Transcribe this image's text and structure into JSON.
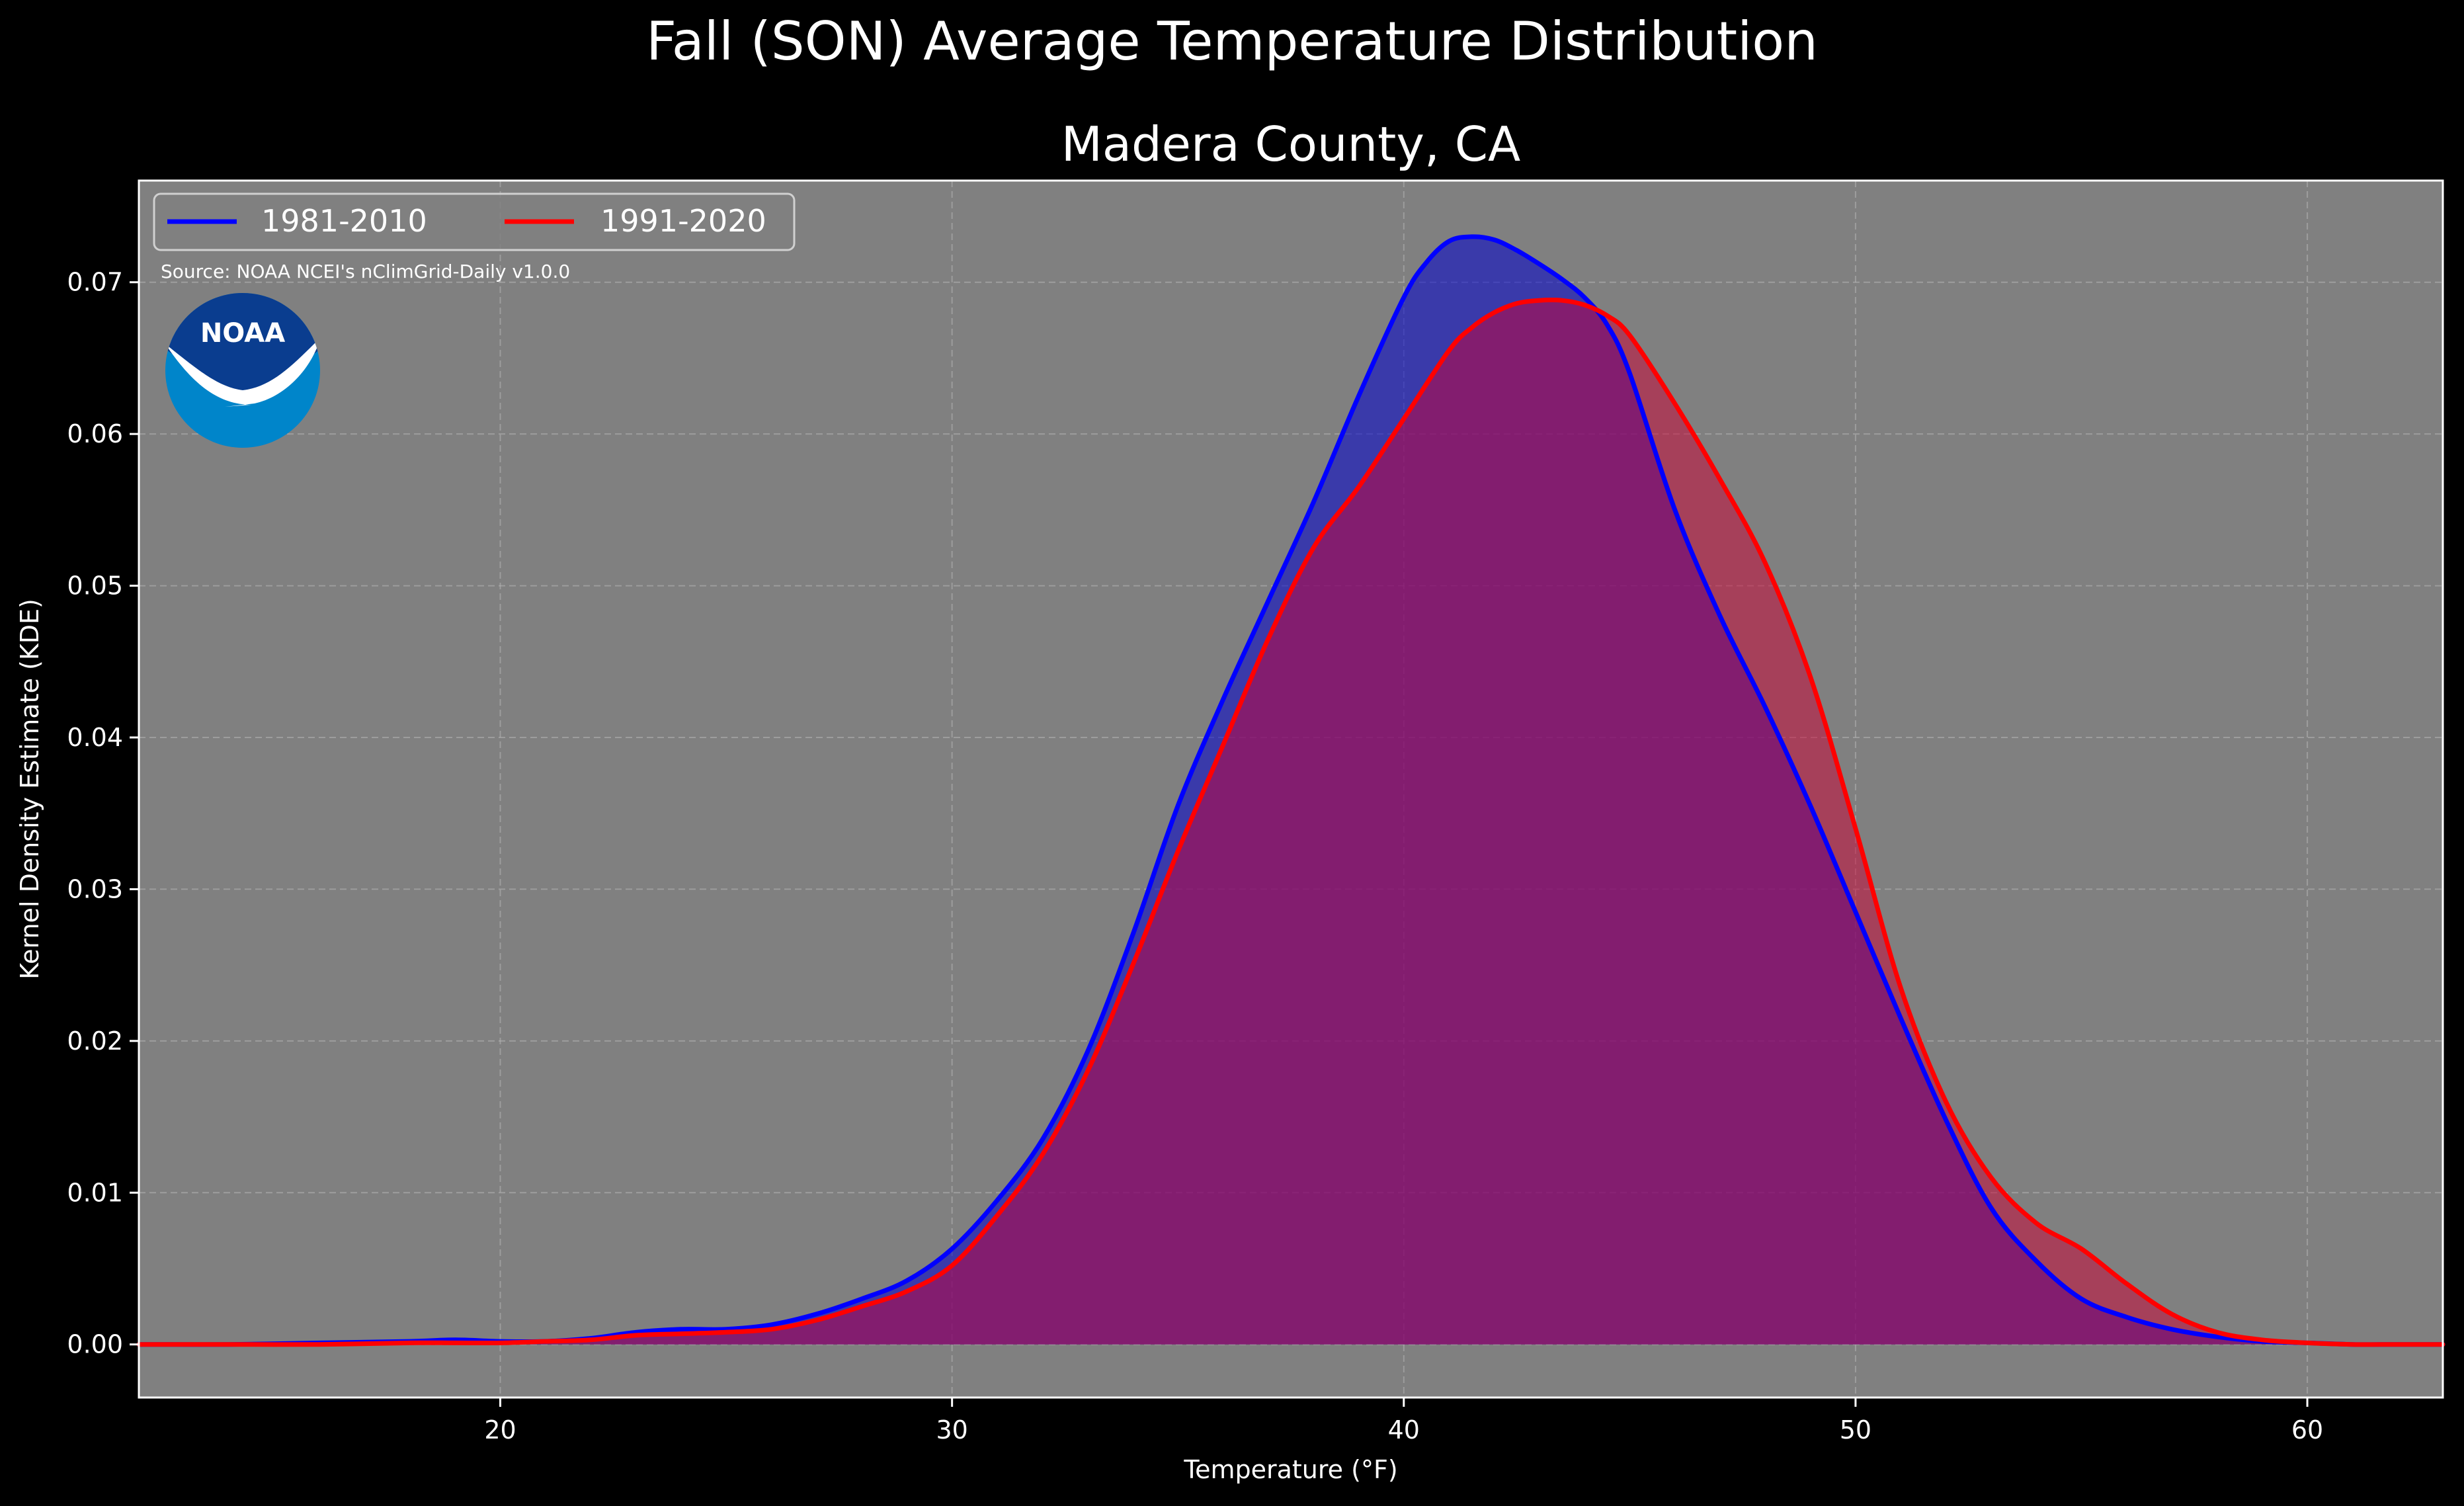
{
  "figure": {
    "suptitle": "Fall (SON) Average Temperature Distribution",
    "background": "#000000"
  },
  "chart_data": {
    "type": "area",
    "title": "Madera County, CA",
    "xlabel": "Temperature (°F)",
    "ylabel": "Kernel Density Estimate (KDE)",
    "xlim": [
      12,
      63
    ],
    "ylim": [
      -0.0035,
      0.0767
    ],
    "xticks": [
      {
        "value": 20,
        "label": "20"
      },
      {
        "value": 30,
        "label": "30"
      },
      {
        "value": 40,
        "label": "40"
      },
      {
        "value": 50,
        "label": "50"
      },
      {
        "value": 60,
        "label": "60"
      }
    ],
    "yticks": [
      {
        "value": 0.0,
        "label": "0.00"
      },
      {
        "value": 0.01,
        "label": "0.01"
      },
      {
        "value": 0.02,
        "label": "0.02"
      },
      {
        "value": 0.03,
        "label": "0.03"
      },
      {
        "value": 0.04,
        "label": "0.04"
      },
      {
        "value": 0.05,
        "label": "0.05"
      },
      {
        "value": 0.06,
        "label": "0.06"
      },
      {
        "value": 0.07,
        "label": "0.07"
      }
    ],
    "grid": true,
    "plot_background": "#808080",
    "legend": {
      "placement": "top-left",
      "columns": 2
    },
    "annotation": "Source: NOAA NCEI's nClimGrid-Daily v1.0.0",
    "logo": {
      "text": "NOAA",
      "colors": [
        "#0a3d8f",
        "#0085ca",
        "#ffffff"
      ]
    },
    "series": [
      {
        "name": "1981-2010",
        "color": "#0000ff",
        "fill": "#0000cc",
        "fill_opacity": 0.55,
        "x": [
          12,
          14,
          16,
          18,
          19,
          20,
          21,
          22,
          23,
          24,
          25,
          26,
          27,
          28,
          29,
          30,
          31,
          32,
          33,
          34,
          35,
          36,
          37,
          38,
          39,
          40,
          40.5,
          41,
          41.5,
          42,
          42.5,
          43,
          43.5,
          44,
          44.5,
          45,
          46,
          47,
          48,
          49,
          50,
          51,
          52,
          53,
          54,
          55,
          56,
          57,
          58,
          59,
          60,
          61,
          62,
          63
        ],
        "y": [
          0.0,
          0.0,
          0.0001,
          0.0002,
          0.0003,
          0.0002,
          0.0002,
          0.0004,
          0.0008,
          0.001,
          0.001,
          0.0013,
          0.002,
          0.003,
          0.0042,
          0.0063,
          0.0095,
          0.0135,
          0.0193,
          0.027,
          0.0355,
          0.0425,
          0.049,
          0.0555,
          0.0625,
          0.069,
          0.0713,
          0.0727,
          0.073,
          0.0728,
          0.0721,
          0.0712,
          0.0702,
          0.069,
          0.0672,
          0.064,
          0.055,
          0.048,
          0.042,
          0.0355,
          0.0285,
          0.0215,
          0.0148,
          0.009,
          0.0055,
          0.003,
          0.0018,
          0.001,
          0.0005,
          0.0002,
          0.0001,
          0.0,
          0.0,
          0.0
        ]
      },
      {
        "name": "1991-2020",
        "color": "#ff0000",
        "fill": "#cc0033",
        "fill_opacity": 0.5,
        "x": [
          12,
          14,
          16,
          18,
          19,
          20,
          21,
          22,
          23,
          24,
          25,
          26,
          27,
          28,
          29,
          30,
          31,
          32,
          33,
          34,
          35,
          36,
          37,
          38,
          39,
          40,
          41,
          41.5,
          42,
          42.5,
          43,
          43.5,
          44,
          44.5,
          45,
          46,
          47,
          48,
          49,
          50,
          51,
          52,
          53,
          54,
          55,
          56,
          57,
          58,
          59,
          60,
          61,
          62,
          63
        ],
        "y": [
          0.0,
          0.0,
          0.0,
          0.0001,
          0.0001,
          0.0001,
          0.0002,
          0.0003,
          0.0006,
          0.0007,
          0.0008,
          0.001,
          0.0016,
          0.0025,
          0.0035,
          0.0052,
          0.0085,
          0.0125,
          0.018,
          0.025,
          0.0325,
          0.0395,
          0.0465,
          0.0525,
          0.0565,
          0.061,
          0.0655,
          0.067,
          0.068,
          0.0686,
          0.0688,
          0.0688,
          0.0685,
          0.0678,
          0.0665,
          0.062,
          0.057,
          0.0515,
          0.044,
          0.034,
          0.0235,
          0.016,
          0.011,
          0.008,
          0.0063,
          0.004,
          0.002,
          0.0008,
          0.0003,
          0.0001,
          0.0,
          0.0,
          0.0
        ]
      }
    ]
  }
}
